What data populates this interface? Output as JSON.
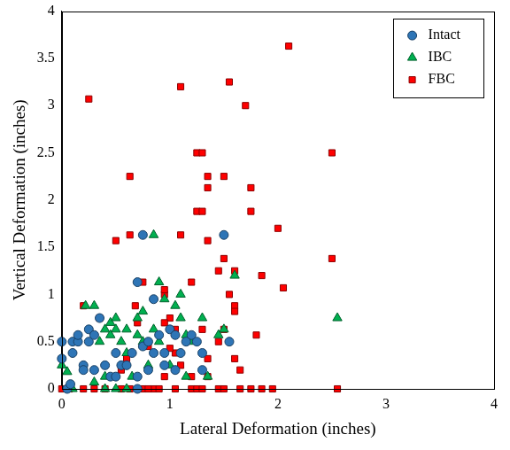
{
  "chart_data": {
    "type": "scatter",
    "x_label": "Lateral Deformation (inches)",
    "y_label": "Vertical Deformation (inches)",
    "xlim": [
      0,
      4
    ],
    "xticks": [
      0,
      1,
      2,
      3,
      4
    ],
    "ylim": [
      0,
      4
    ],
    "yticks": [
      0,
      0.5,
      1,
      1.5,
      2,
      2.5,
      3,
      3.5,
      4
    ],
    "grid": false,
    "legend": "upper right",
    "series": [
      {
        "name": "Intact",
        "color": "#2e75b6",
        "marker": "circle",
        "values": [
          [
            0.0,
            0.5
          ],
          [
            0.0,
            0.32
          ],
          [
            0.05,
            0.0
          ],
          [
            0.08,
            0.05
          ],
          [
            0.1,
            0.38
          ],
          [
            0.1,
            0.5
          ],
          [
            0.15,
            0.5
          ],
          [
            0.15,
            0.57
          ],
          [
            0.2,
            0.25
          ],
          [
            0.2,
            0.2
          ],
          [
            0.25,
            0.5
          ],
          [
            0.25,
            0.63
          ],
          [
            0.3,
            0.57
          ],
          [
            0.3,
            0.2
          ],
          [
            0.35,
            0.75
          ],
          [
            0.4,
            0.25
          ],
          [
            0.45,
            0.13
          ],
          [
            0.5,
            0.13
          ],
          [
            0.5,
            0.38
          ],
          [
            0.55,
            0.25
          ],
          [
            0.6,
            0.25
          ],
          [
            0.65,
            0.38
          ],
          [
            0.7,
            1.13
          ],
          [
            0.75,
            1.63
          ],
          [
            0.7,
            0.13
          ],
          [
            0.75,
            0.45
          ],
          [
            0.8,
            0.5
          ],
          [
            0.85,
            0.95
          ],
          [
            0.8,
            0.2
          ],
          [
            0.85,
            0.38
          ],
          [
            0.9,
            0.57
          ],
          [
            0.95,
            0.25
          ],
          [
            1.0,
            0.63
          ],
          [
            1.05,
            0.57
          ],
          [
            1.1,
            0.38
          ],
          [
            1.15,
            0.5
          ],
          [
            1.2,
            0.57
          ],
          [
            1.25,
            0.5
          ],
          [
            1.3,
            0.2
          ],
          [
            1.3,
            0.38
          ],
          [
            1.5,
            1.63
          ],
          [
            1.55,
            0.5
          ],
          [
            1.05,
            0.2
          ],
          [
            0.7,
            0.0
          ],
          [
            0.95,
            0.38
          ]
        ]
      },
      {
        "name": "IBC",
        "color": "#00b050",
        "marker": "triangle",
        "values": [
          [
            0.0,
            0.25
          ],
          [
            0.05,
            0.18
          ],
          [
            0.1,
            0.0
          ],
          [
            0.22,
            0.88
          ],
          [
            0.3,
            0.88
          ],
          [
            0.35,
            0.5
          ],
          [
            0.4,
            0.63
          ],
          [
            0.45,
            0.7
          ],
          [
            0.45,
            0.57
          ],
          [
            0.5,
            0.63
          ],
          [
            0.5,
            0.75
          ],
          [
            0.55,
            0.5
          ],
          [
            0.6,
            0.38
          ],
          [
            0.6,
            0.63
          ],
          [
            0.65,
            0.13
          ],
          [
            0.7,
            0.57
          ],
          [
            0.7,
            0.75
          ],
          [
            0.75,
            0.82
          ],
          [
            0.75,
            0.5
          ],
          [
            0.8,
            0.25
          ],
          [
            0.85,
            1.63
          ],
          [
            0.85,
            0.63
          ],
          [
            0.9,
            1.13
          ],
          [
            0.9,
            0.5
          ],
          [
            0.95,
            0.95
          ],
          [
            1.0,
            0.25
          ],
          [
            1.05,
            0.88
          ],
          [
            1.1,
            0.75
          ],
          [
            1.1,
            1.0
          ],
          [
            1.15,
            0.57
          ],
          [
            1.15,
            0.13
          ],
          [
            1.2,
            0.5
          ],
          [
            1.3,
            0.75
          ],
          [
            1.35,
            0.13
          ],
          [
            1.45,
            0.57
          ],
          [
            1.5,
            0.63
          ],
          [
            1.6,
            1.2
          ],
          [
            2.55,
            0.75
          ],
          [
            0.4,
            0.0
          ],
          [
            0.5,
            0.0
          ],
          [
            0.6,
            0.0
          ],
          [
            0.4,
            0.13
          ],
          [
            0.3,
            0.07
          ]
        ]
      },
      {
        "name": "FBC",
        "color": "#ff0000",
        "marker": "square",
        "values": [
          [
            0.25,
            3.07
          ],
          [
            2.1,
            3.63
          ],
          [
            1.1,
            3.2
          ],
          [
            1.55,
            3.25
          ],
          [
            1.7,
            3.0
          ],
          [
            2.5,
            2.5
          ],
          [
            1.25,
            2.5
          ],
          [
            1.3,
            2.5
          ],
          [
            0.63,
            2.25
          ],
          [
            1.35,
            2.25
          ],
          [
            1.35,
            2.13
          ],
          [
            1.5,
            2.25
          ],
          [
            1.75,
            2.13
          ],
          [
            1.25,
            1.88
          ],
          [
            1.3,
            1.88
          ],
          [
            1.75,
            1.88
          ],
          [
            2.0,
            1.7
          ],
          [
            0.5,
            1.57
          ],
          [
            0.63,
            1.63
          ],
          [
            1.1,
            1.63
          ],
          [
            1.35,
            1.57
          ],
          [
            1.5,
            1.38
          ],
          [
            2.5,
            1.38
          ],
          [
            1.45,
            1.25
          ],
          [
            1.6,
            1.25
          ],
          [
            1.85,
            1.2
          ],
          [
            2.05,
            1.07
          ],
          [
            0.75,
            1.13
          ],
          [
            0.95,
            1.0
          ],
          [
            0.95,
            1.05
          ],
          [
            1.2,
            1.13
          ],
          [
            1.55,
            1.0
          ],
          [
            1.6,
            0.88
          ],
          [
            1.6,
            0.82
          ],
          [
            0.2,
            0.88
          ],
          [
            0.35,
            0.75
          ],
          [
            0.68,
            0.88
          ],
          [
            1.0,
            0.75
          ],
          [
            1.05,
            0.63
          ],
          [
            1.3,
            0.63
          ],
          [
            1.5,
            0.63
          ],
          [
            0.7,
            0.7
          ],
          [
            0.95,
            0.7
          ],
          [
            1.05,
            0.38
          ],
          [
            1.45,
            0.5
          ],
          [
            1.8,
            0.57
          ],
          [
            0.8,
            0.45
          ],
          [
            0.6,
            0.32
          ],
          [
            1.0,
            0.43
          ],
          [
            1.1,
            0.25
          ],
          [
            1.35,
            0.32
          ],
          [
            1.6,
            0.32
          ],
          [
            0.95,
            0.13
          ],
          [
            1.2,
            0.13
          ],
          [
            1.35,
            0.13
          ],
          [
            1.65,
            0.2
          ],
          [
            0.55,
            0.2
          ],
          [
            0.85,
            0.0
          ],
          [
            0.0,
            0.0
          ],
          [
            0.07,
            0.0
          ],
          [
            0.2,
            0.0
          ],
          [
            0.3,
            0.0
          ],
          [
            0.4,
            0.0
          ],
          [
            0.55,
            0.0
          ],
          [
            0.63,
            0.0
          ],
          [
            0.75,
            0.0
          ],
          [
            0.8,
            0.0
          ],
          [
            0.9,
            0.0
          ],
          [
            1.05,
            0.0
          ],
          [
            1.2,
            0.0
          ],
          [
            1.25,
            0.0
          ],
          [
            1.3,
            0.0
          ],
          [
            1.45,
            0.0
          ],
          [
            1.5,
            0.0
          ],
          [
            1.65,
            0.0
          ],
          [
            1.75,
            0.0
          ],
          [
            1.85,
            0.0
          ],
          [
            1.95,
            0.0
          ],
          [
            2.55,
            0.0
          ]
        ]
      }
    ]
  }
}
